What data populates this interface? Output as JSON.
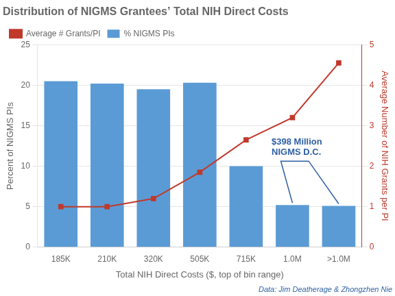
{
  "chart_data": {
    "type": "bar",
    "title": "Distribution of NIGMS Grantees’ Total NIH Direct Costs",
    "xlabel": "Total NIH Direct Costs ($, top of bin range)",
    "ylabel": "Percent of NIGMS PIs",
    "y2label": "Average Number of NIH Grants per PI",
    "categories": [
      "185K",
      "210K",
      "320K",
      "505K",
      "715K",
      "1.0M",
      ">1.0M"
    ],
    "series": [
      {
        "name": "% NIGMS PIs",
        "color": "#5b9bd5",
        "values": [
          20.5,
          20.2,
          19.5,
          20.3,
          10.0,
          5.2,
          5.1
        ]
      },
      {
        "name": "Average # Grants/PI",
        "type": "line",
        "axis": "y2",
        "color": "#c0392b",
        "marker": "square",
        "values": [
          1.0,
          1.0,
          1.2,
          1.85,
          2.65,
          3.2,
          4.55
        ]
      }
    ],
    "ylim": [
      0,
      25
    ],
    "yticks": [
      0,
      5,
      10,
      15,
      20,
      25
    ],
    "y2lim": [
      0,
      5
    ],
    "y2ticks": [
      0,
      1,
      2,
      3,
      4,
      5
    ],
    "grid": true,
    "legend": "upper left",
    "annotations": [
      {
        "text": "$398 Million\nNIGMS D.C.",
        "color": "#2e5fa3"
      }
    ],
    "source": {
      "text": "Data: Jim Deatherage & Zhongzhen Nie",
      "color": "#2e5fa3"
    }
  }
}
